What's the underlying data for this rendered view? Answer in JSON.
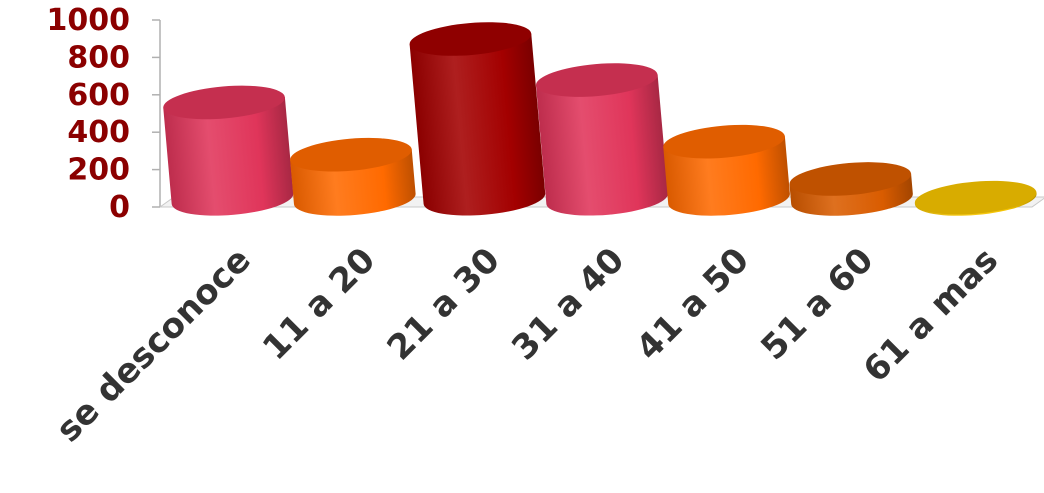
{
  "chart_data": {
    "type": "bar",
    "style": "3d-cylinder",
    "categories": [
      "se desconoce",
      "11 a 20",
      "21 a 30",
      "31 a 40",
      "41 a 50",
      "51 a 60",
      "61 a mas"
    ],
    "values": [
      560,
      280,
      900,
      680,
      350,
      150,
      50
    ],
    "title": "",
    "xlabel": "",
    "ylabel": "",
    "ylim": [
      0,
      1000
    ],
    "yticks": [
      0,
      200,
      400,
      600,
      800,
      1000
    ],
    "grid": false,
    "legend": "none",
    "colors": {
      "tick_labels_y": "#8b0000",
      "tick_labels_x": "#333333",
      "bars": [
        "#e0355a",
        "#ff6a00",
        "#a30000",
        "#e0355a",
        "#ff6a00",
        "#d95c00",
        "#f5c400"
      ]
    }
  }
}
